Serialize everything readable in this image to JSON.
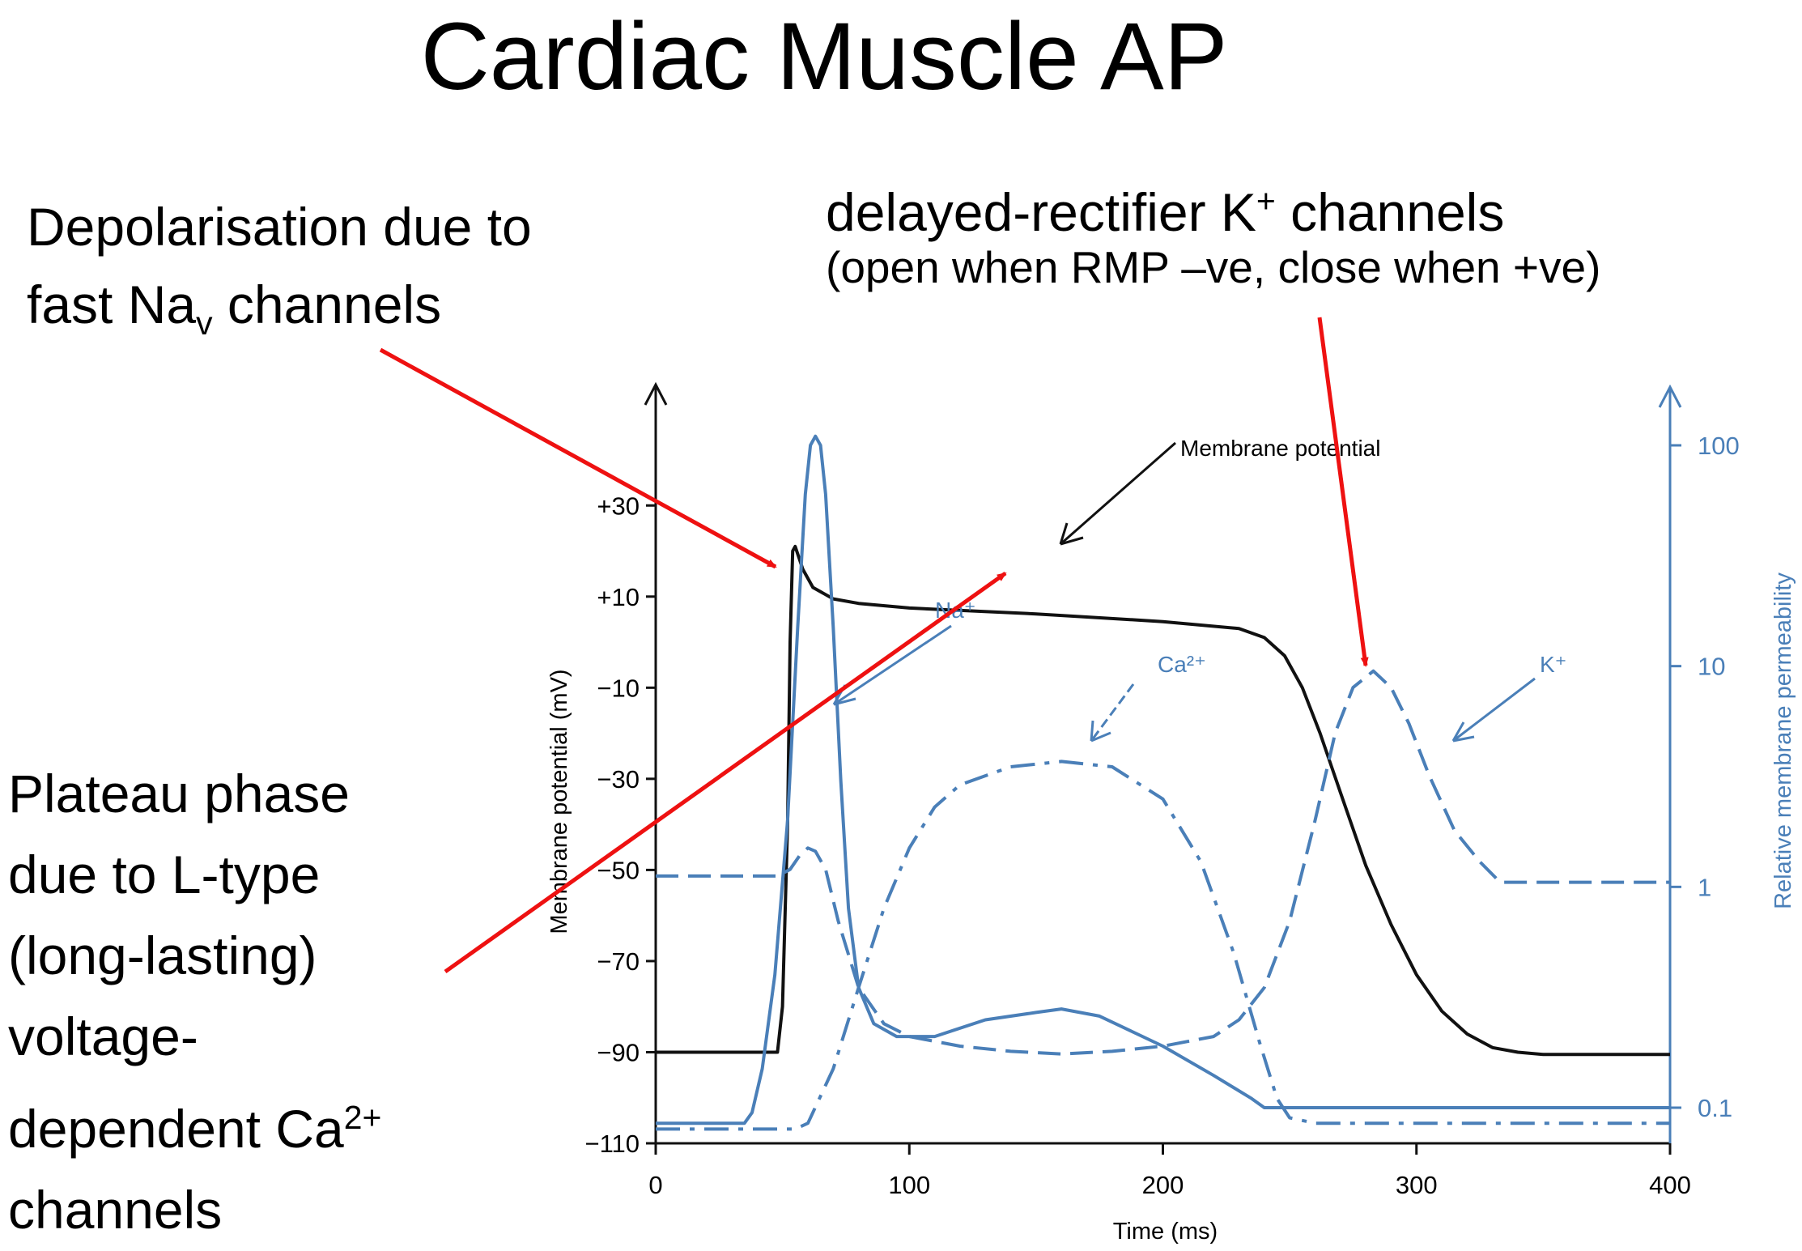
{
  "slide": {
    "title": "Cardiac Muscle AP",
    "note_depol_line1": "Depolarisation due to",
    "note_depol_line2a": "fast Na",
    "note_depol_line2sub": "v",
    "note_depol_line2b": " channels",
    "note_k_a": "delayed-rectifier K",
    "note_k_sup": "+",
    "note_k_b": " channels",
    "note_k_sub": "(open when RMP –ve, close when +ve)",
    "note_plateau_1": "Plateau phase",
    "note_plateau_2": "due to L-type",
    "note_plateau_3": "(long-lasting)",
    "note_plateau_4": "voltage-",
    "note_plateau_5a": "dependent Ca",
    "note_plateau_5sup": "2+",
    "note_plateau_6": "channels"
  },
  "colors": {
    "potential": "#111111",
    "permeability": "#4a7fb8",
    "arrows": "#ee1111"
  },
  "chart_data": {
    "type": "line",
    "xlabel": "Time (ms)",
    "ylabel_left": "Membrane potential (mV)",
    "ylabel_right": "Relative membrane permeability",
    "xlim": [
      0,
      400
    ],
    "ylim_left": [
      -110,
      40
    ],
    "ylim_right": [
      0.07,
      160
    ],
    "right_scale": "log",
    "x_ticks": [
      "0",
      "100",
      "200",
      "300",
      "400"
    ],
    "y_ticks_left": [
      "+30",
      "+10",
      "−10",
      "−30",
      "−50",
      "−70",
      "−90",
      "−110"
    ],
    "y_ticks_left_values": [
      30,
      10,
      -10,
      -30,
      -50,
      -70,
      -90,
      -110
    ],
    "y_ticks_right": [
      "100",
      "10",
      "1",
      "0.1"
    ],
    "y_ticks_right_values": [
      100,
      10,
      1,
      0.1
    ],
    "annotations": {
      "membrane_potential": "Membrane potential",
      "na": "Na⁺",
      "ca": "Ca²⁺",
      "k": "K⁺"
    },
    "series": [
      {
        "name": "Membrane potential",
        "axis": "left",
        "style": "solid",
        "x": [
          0,
          48,
          50,
          52,
          53,
          54,
          55,
          58,
          62,
          70,
          80,
          100,
          150,
          200,
          230,
          240,
          248,
          255,
          262,
          270,
          280,
          290,
          300,
          310,
          320,
          330,
          340,
          350,
          400
        ],
        "y": [
          -90,
          -90,
          -80,
          -40,
          0,
          20,
          21,
          16,
          12,
          9.5,
          8.5,
          7.5,
          6.2,
          4.5,
          3,
          1,
          -3,
          -10,
          -20,
          -33,
          -49,
          -62,
          -73,
          -81,
          -86,
          -89,
          -90,
          -90.5,
          -90.5
        ]
      },
      {
        "name": "Na⁺",
        "axis": "right",
        "style": "solid",
        "x": [
          0,
          35,
          38,
          42,
          47,
          52,
          56,
          59,
          61,
          63,
          65,
          67,
          70,
          73,
          76,
          80,
          86,
          95,
          110,
          130,
          150,
          160,
          175,
          200,
          220,
          235,
          240,
          300,
          400
        ],
        "y": [
          0.085,
          0.085,
          0.095,
          0.15,
          0.4,
          2,
          15,
          60,
          100,
          110,
          100,
          60,
          15,
          3,
          0.8,
          0.35,
          0.24,
          0.21,
          0.21,
          0.25,
          0.27,
          0.28,
          0.26,
          0.19,
          0.14,
          0.11,
          0.1,
          0.1,
          0.1
        ]
      },
      {
        "name": "Ca²⁺",
        "axis": "right",
        "style": "dashdot",
        "x": [
          0,
          55,
          60,
          70,
          80,
          90,
          100,
          110,
          120,
          140,
          160,
          180,
          200,
          215,
          228,
          238,
          245,
          250,
          260,
          300,
          400
        ],
        "y": [
          0.08,
          0.08,
          0.085,
          0.15,
          0.35,
          0.8,
          1.5,
          2.3,
          2.9,
          3.5,
          3.7,
          3.5,
          2.5,
          1.3,
          0.5,
          0.2,
          0.11,
          0.09,
          0.085,
          0.085,
          0.085
        ]
      },
      {
        "name": "K⁺",
        "axis": "right",
        "style": "dashed",
        "x": [
          0,
          48,
          53,
          57,
          60,
          63,
          67,
          72,
          80,
          90,
          100,
          120,
          140,
          160,
          180,
          200,
          220,
          230,
          240,
          250,
          260,
          268,
          275,
          283,
          290,
          297,
          305,
          315,
          325,
          333,
          340,
          400
        ],
        "y": [
          1.12,
          1.12,
          1.2,
          1.4,
          1.5,
          1.45,
          1.2,
          0.7,
          0.35,
          0.24,
          0.21,
          0.19,
          0.18,
          0.175,
          0.18,
          0.19,
          0.21,
          0.25,
          0.35,
          0.7,
          2,
          5,
          8,
          9.5,
          8,
          5.5,
          3.2,
          1.8,
          1.3,
          1.05,
          1.05,
          1.05
        ]
      }
    ]
  }
}
